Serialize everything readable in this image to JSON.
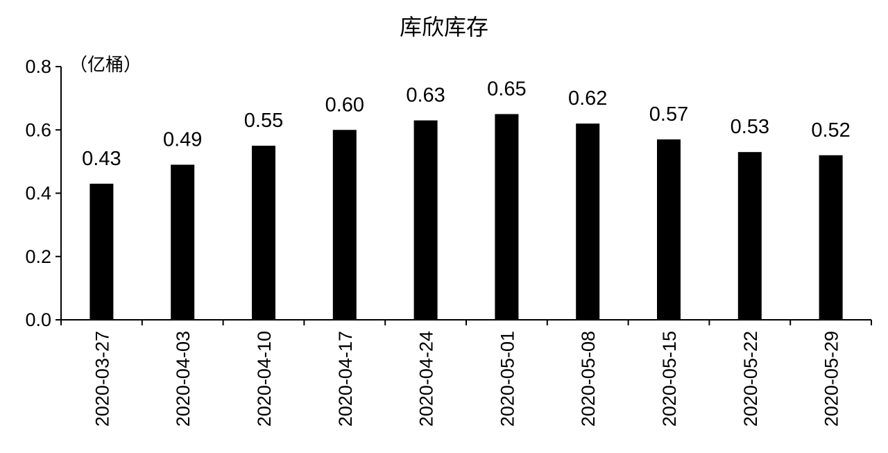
{
  "chart_data": {
    "type": "bar",
    "title": "库欣库存",
    "unit_label": "（亿桶）",
    "xlabel": "",
    "ylabel": "",
    "categories": [
      "2020-03-27",
      "2020-04-03",
      "2020-04-10",
      "2020-04-17",
      "2020-04-24",
      "2020-05-01",
      "2020-05-08",
      "2020-05-15",
      "2020-05-22",
      "2020-05-29"
    ],
    "values": [
      0.43,
      0.49,
      0.55,
      0.6,
      0.63,
      0.65,
      0.62,
      0.57,
      0.53,
      0.52
    ],
    "value_labels": [
      "0.43",
      "0.49",
      "0.55",
      "0.60",
      "0.63",
      "0.65",
      "0.62",
      "0.57",
      "0.53",
      "0.52"
    ],
    "ylim": [
      0,
      0.8
    ],
    "yticks": [
      0.0,
      0.2,
      0.4,
      0.6,
      0.8
    ],
    "ytick_labels": [
      "0.0",
      "0.2",
      "0.4",
      "0.6",
      "0.8"
    ],
    "grid": false,
    "legend": "none",
    "bar_color": "#000000"
  }
}
